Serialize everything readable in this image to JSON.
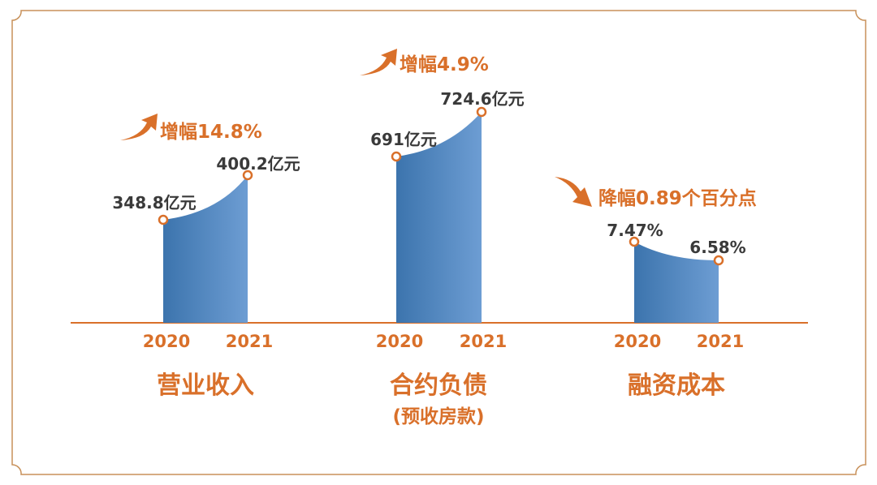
{
  "colors": {
    "accent": "#d9702a",
    "bar_dark": "#3c74ad",
    "bar_light": "#6d9dd3",
    "frame": "#c8915a"
  },
  "chart_data": {
    "type": "area",
    "x": [
      "2020",
      "2021"
    ],
    "groups": [
      {
        "title": "营业收入",
        "subtitle": "",
        "values": [
          348.8,
          400.2
        ],
        "labels": [
          "348.8亿元",
          "400.2亿元"
        ],
        "change": "增幅14.8%",
        "direction": "up"
      },
      {
        "title": "合约负债",
        "subtitle": "(预收房款)",
        "values": [
          691,
          724.6
        ],
        "labels": [
          "691亿元",
          "724.6亿元"
        ],
        "change": "增幅4.9%",
        "direction": "up"
      },
      {
        "title": "融资成本",
        "subtitle": "",
        "values": [
          7.47,
          6.58
        ],
        "labels": [
          "7.47%",
          "6.58%"
        ],
        "change": "降幅0.89个百分点",
        "direction": "down"
      }
    ]
  }
}
